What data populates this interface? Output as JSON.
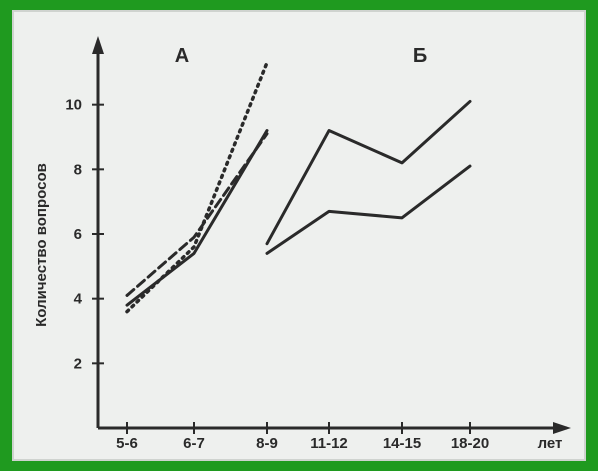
{
  "chart_data": {
    "type": "line",
    "panels": [
      "A",
      "Б"
    ],
    "categories": [
      "5-6",
      "6-7",
      "8-9",
      "11-12",
      "14-15",
      "18-20"
    ],
    "x_unit_label": "лет",
    "ylabel": "Количество вопросов",
    "y_ticks": [
      2,
      4,
      6,
      8,
      10
    ],
    "ylim": [
      0,
      12
    ],
    "series": [
      {
        "panel": "A",
        "style": "solid",
        "x": [
          "5-6",
          "6-7",
          "8-9"
        ],
        "values": [
          3.8,
          5.4,
          9.2
        ]
      },
      {
        "panel": "A",
        "style": "dashed",
        "x": [
          "5-6",
          "6-7",
          "8-9"
        ],
        "values": [
          4.1,
          5.9,
          9.1
        ]
      },
      {
        "panel": "A",
        "style": "dotted",
        "x": [
          "5-6",
          "6-7",
          "8-9"
        ],
        "values": [
          3.6,
          5.6,
          11.3
        ]
      },
      {
        "panel": "Б",
        "style": "solid",
        "x": [
          "8-9",
          "11-12",
          "14-15",
          "18-20"
        ],
        "values": [
          5.7,
          9.2,
          8.2,
          10.1
        ]
      },
      {
        "panel": "Б",
        "style": "solid",
        "x": [
          "8-9",
          "11-12",
          "14-15",
          "18-20"
        ],
        "values": [
          5.4,
          6.7,
          6.5,
          8.1
        ]
      }
    ],
    "grid": false,
    "legend": "none",
    "colors": {
      "background": "#1f9a1f",
      "plot": "#eef0ee",
      "ink": "#2a2a2a"
    }
  }
}
